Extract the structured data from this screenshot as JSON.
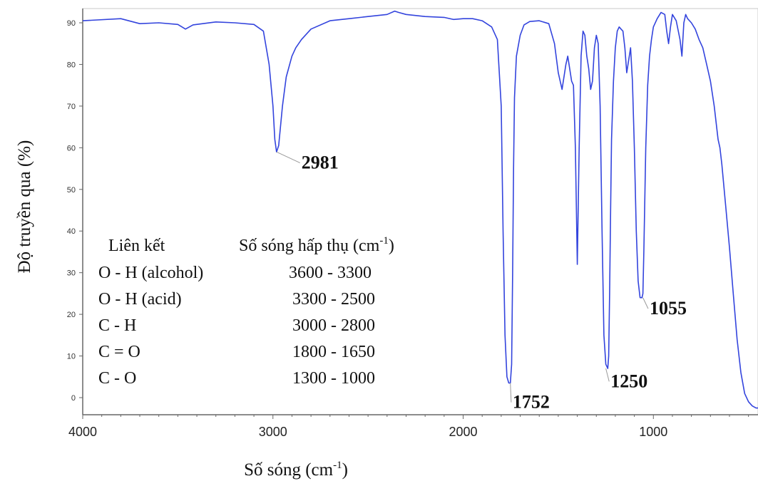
{
  "chart_data": {
    "type": "line",
    "title": "",
    "xlabel": "Số sóng (cm",
    "xlabel_sup": "-1",
    "xlabel_end": ")",
    "ylabel": "Độ truyền qua (%)",
    "xlim": [
      4000,
      450
    ],
    "ylim": [
      -4,
      95
    ],
    "x_ticks": [
      4000,
      3000,
      2000,
      1000
    ],
    "x_tick_labels": [
      "4000",
      "3000",
      "2000",
      "1000"
    ],
    "y_ticks": [
      0,
      10,
      20,
      30,
      40,
      50,
      60,
      70,
      80,
      90
    ],
    "y_tick_labels": [
      "0",
      "10",
      "20",
      "30",
      "40",
      "50",
      "60",
      "70",
      "80",
      "90"
    ],
    "line_color": "#3344dd",
    "series": [
      {
        "x": [
          4000,
          3800,
          3700,
          3600,
          3500,
          3460,
          3420,
          3300,
          3200,
          3100,
          3050,
          3020,
          3000,
          2990,
          2981,
          2970,
          2950,
          2930,
          2900,
          2880,
          2850,
          2800,
          2700,
          2600,
          2500,
          2400,
          2360,
          2340,
          2300,
          2200,
          2100,
          2050,
          2000,
          1950,
          1900,
          1850,
          1820,
          1800,
          1790,
          1780,
          1770,
          1760,
          1752,
          1745,
          1740,
          1735,
          1730,
          1720,
          1700,
          1680,
          1650,
          1600,
          1550,
          1520,
          1500,
          1480,
          1460,
          1450,
          1440,
          1430,
          1420,
          1410,
          1400,
          1390,
          1380,
          1370,
          1360,
          1350,
          1340,
          1330,
          1320,
          1310,
          1300,
          1290,
          1280,
          1270,
          1260,
          1250,
          1240,
          1235,
          1230,
          1225,
          1220,
          1210,
          1200,
          1190,
          1180,
          1170,
          1160,
          1150,
          1140,
          1130,
          1120,
          1110,
          1100,
          1090,
          1080,
          1070,
          1060,
          1055,
          1050,
          1040,
          1030,
          1020,
          1010,
          1000,
          980,
          960,
          940,
          930,
          920,
          910,
          900,
          880,
          860,
          850,
          840,
          830,
          820,
          800,
          780,
          760,
          740,
          720,
          700,
          680,
          660,
          650,
          640,
          620,
          600,
          580,
          560,
          540,
          520,
          500,
          480,
          460,
          450
        ],
        "y": [
          90.5,
          91.0,
          89.8,
          90.0,
          89.6,
          88.5,
          89.5,
          90.2,
          90.0,
          89.6,
          88.0,
          80.0,
          70.0,
          62.0,
          59.0,
          60.5,
          70.0,
          77.0,
          82.0,
          84.0,
          86.0,
          88.5,
          90.5,
          91.0,
          91.5,
          92.0,
          92.8,
          92.5,
          92.0,
          91.5,
          91.3,
          90.8,
          91.0,
          91.0,
          90.5,
          89.0,
          86.0,
          70.0,
          40.0,
          15.0,
          5.0,
          3.5,
          3.5,
          8.0,
          30.0,
          55.0,
          72.0,
          82.0,
          87.0,
          89.5,
          90.3,
          90.5,
          89.8,
          85.0,
          78.0,
          74.0,
          80.0,
          82.0,
          79.0,
          76.0,
          75.0,
          60.0,
          32.0,
          60.0,
          82.0,
          88.0,
          87.0,
          82.0,
          79.0,
          74.0,
          76.0,
          84.0,
          87.0,
          85.0,
          70.0,
          40.0,
          15.0,
          8.0,
          7.0,
          10.0,
          25.0,
          45.0,
          62.0,
          76.0,
          84.0,
          88.0,
          89.0,
          88.5,
          88.0,
          84.0,
          78.0,
          81.0,
          84.0,
          76.0,
          60.0,
          40.0,
          28.0,
          24.0,
          24.0,
          25.0,
          35.0,
          60.0,
          75.0,
          82.0,
          86.0,
          89.0,
          91.0,
          92.5,
          92.0,
          88.0,
          85.0,
          89.0,
          92.0,
          90.5,
          86.0,
          82.0,
          90.0,
          92.0,
          91.0,
          90.0,
          88.5,
          86.0,
          84.0,
          80.0,
          76.0,
          70.0,
          62.0,
          60.0,
          56.0,
          46.0,
          36.0,
          25.0,
          14.0,
          6.0,
          1.0,
          -1.0,
          -2.0,
          -2.5,
          -2.5
        ]
      }
    ],
    "annotations": [
      {
        "x": 2981,
        "y": 59.0,
        "label": "2981",
        "label_x": 2850,
        "label_y": 55.0
      },
      {
        "x": 1752,
        "y": 3.5,
        "label": "1752",
        "label_x": 1740,
        "label_y": -2.5
      },
      {
        "x": 1250,
        "y": 7.0,
        "label": "1250",
        "label_x": 1225,
        "label_y": 2.5
      },
      {
        "x": 1055,
        "y": 24.0,
        "label": "1055",
        "label_x": 1020,
        "label_y": 20.0
      }
    ]
  },
  "bond_table": {
    "header_bond": "Liên kết",
    "header_wavenumber": "Số sóng hấp thụ (cm",
    "header_sup": "-1",
    "header_end": ")",
    "rows": [
      {
        "bond": "O - H (alcohol)",
        "range": "3600 - 3300"
      },
      {
        "bond": "O - H  (acid)",
        "range": "3300 - 2500"
      },
      {
        "bond": "C - H",
        "range": "3000 - 2800"
      },
      {
        "bond": "C = O",
        "range": "1800 - 1650"
      },
      {
        "bond": "C - O",
        "range": "1300 - 1000"
      }
    ]
  }
}
